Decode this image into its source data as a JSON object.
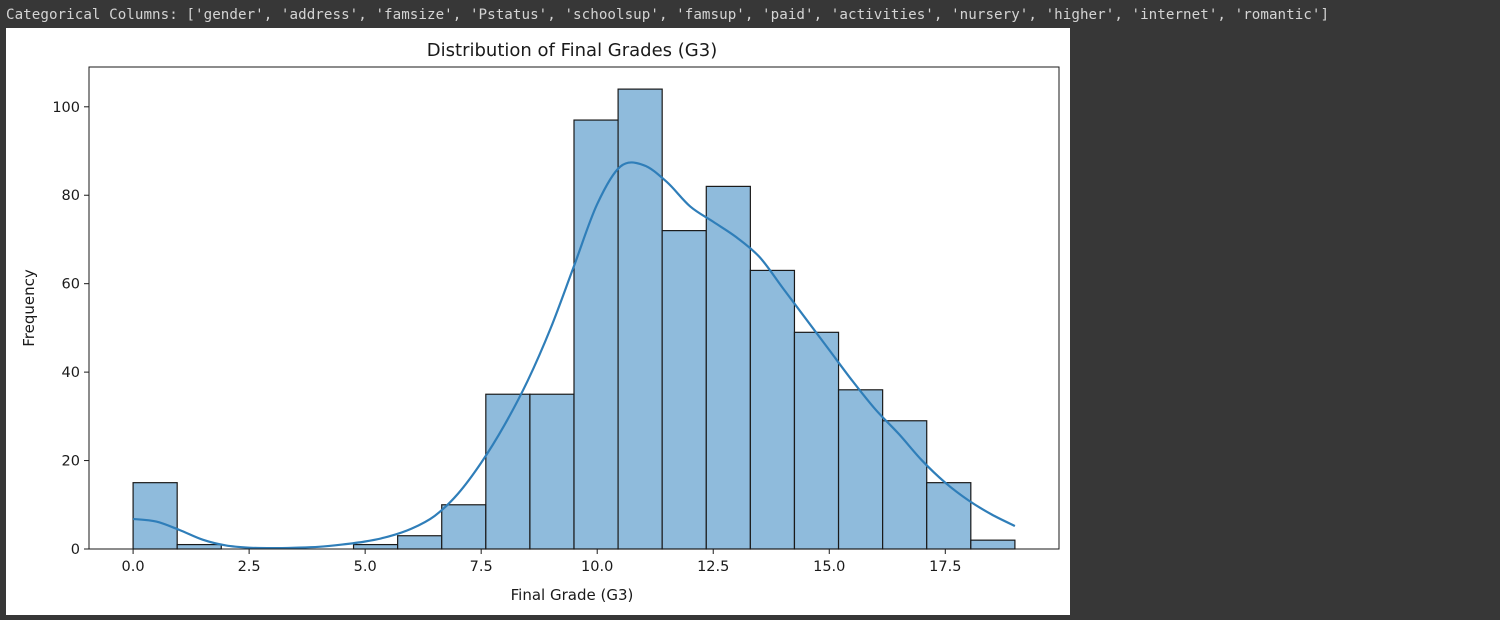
{
  "output": {
    "text": "Categorical Columns: ['gender', 'address', 'famsize', 'Pstatus', 'schoolsup', 'famsup', 'paid', 'activities', 'nursery', 'higher', 'internet', 'romantic']"
  },
  "chart_data": {
    "type": "bar",
    "subtype": "histogram-with-kde",
    "title": "Distribution of Final Grades (G3)",
    "xlabel": "Final Grade (G3)",
    "ylabel": "Frequency",
    "xlim": [
      -0.95,
      19.95
    ],
    "ylim": [
      0,
      109
    ],
    "xticks": [
      0.0,
      2.5,
      5.0,
      7.5,
      10.0,
      12.5,
      15.0,
      17.5
    ],
    "xtick_labels": [
      "0.0",
      "2.5",
      "5.0",
      "7.5",
      "10.0",
      "12.5",
      "15.0",
      "17.5"
    ],
    "yticks": [
      0,
      20,
      40,
      60,
      80,
      100
    ],
    "ytick_labels": [
      "0",
      "20",
      "40",
      "60",
      "80",
      "100"
    ],
    "bin_edges": [
      0.0,
      0.95,
      1.9,
      2.85,
      3.8,
      4.75,
      5.7,
      6.65,
      7.6,
      8.55,
      9.5,
      10.45,
      11.4,
      12.35,
      13.3,
      14.25,
      15.2,
      16.15,
      17.1,
      18.05,
      19.0
    ],
    "values": [
      15,
      1,
      0,
      0,
      0,
      1,
      3,
      10,
      35,
      35,
      97,
      104,
      72,
      82,
      63,
      49,
      36,
      29,
      15,
      2
    ],
    "bar_color": "#8fbbdc",
    "bar_edge_color": "#1a1a1a",
    "kde": {
      "color": "#2f7eb9",
      "x": [
        0.0,
        0.5,
        1.0,
        1.5,
        2.0,
        2.5,
        3.0,
        3.5,
        4.0,
        4.5,
        5.0,
        5.5,
        6.0,
        6.5,
        7.0,
        7.5,
        8.0,
        8.5,
        9.0,
        9.5,
        10.0,
        10.5,
        11.0,
        11.5,
        12.0,
        12.5,
        13.0,
        13.5,
        14.0,
        14.5,
        15.0,
        15.5,
        16.0,
        16.5,
        17.0,
        17.5,
        18.0,
        18.5,
        19.0
      ],
      "y": [
        6.8,
        6.2,
        4.3,
        2.1,
        0.8,
        0.3,
        0.2,
        0.3,
        0.5,
        1.0,
        1.7,
        2.8,
        4.6,
        7.5,
        12.5,
        19.5,
        28.0,
        38.0,
        50.0,
        64.0,
        78.0,
        86.5,
        86.8,
        83.0,
        77.5,
        74.0,
        70.5,
        66.0,
        59.0,
        52.0,
        45.0,
        38.0,
        31.5,
        26.0,
        20.0,
        15.0,
        11.0,
        7.8,
        5.2
      ]
    }
  }
}
